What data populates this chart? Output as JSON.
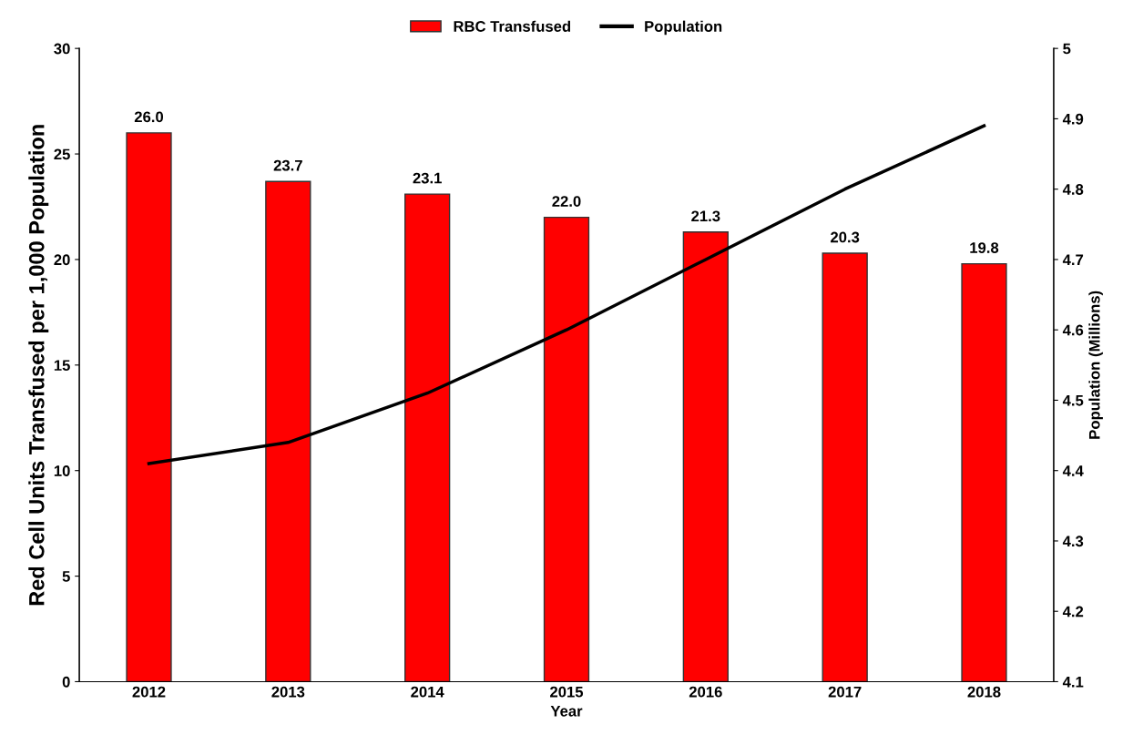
{
  "chart_data": {
    "type": "bar",
    "xlabel": "Year",
    "ylabel": "Red Cell Units Transfused per 1,000 Population",
    "y2label": "Population (Millions)",
    "categories": [
      "2012",
      "2013",
      "2014",
      "2015",
      "2016",
      "2017",
      "2018"
    ],
    "series": [
      {
        "name": "RBC Transfused",
        "color": "#ff0000",
        "values": [
          26.0,
          23.7,
          23.1,
          22.0,
          21.3,
          20.3,
          19.8
        ],
        "value_labels": [
          "26.0",
          "23.7",
          "23.1",
          "22.0",
          "21.3",
          "20.3",
          "19.8"
        ]
      },
      {
        "name": "Population",
        "type": "line",
        "axis": "y2",
        "color": "#000000",
        "values": [
          4.41,
          4.44,
          4.51,
          4.6,
          4.7,
          4.8,
          4.89
        ]
      }
    ],
    "ylim": [
      0,
      30
    ],
    "yticks": [
      0,
      5,
      10,
      15,
      20,
      25,
      30
    ],
    "y2lim": [
      4.1,
      5
    ],
    "y2ticks": [
      {
        "value": 4.1,
        "label": "4.1"
      },
      {
        "value": 4.2,
        "label": "4.2"
      },
      {
        "value": 4.3,
        "label": "4.3"
      },
      {
        "value": 4.4,
        "label": "4.4"
      },
      {
        "value": 4.5,
        "label": "4.5"
      },
      {
        "value": 4.6,
        "label": "4.6"
      },
      {
        "value": 4.7,
        "label": "4.7"
      },
      {
        "value": 4.8,
        "label": "4.8"
      },
      {
        "value": 4.9,
        "label": "4.9"
      },
      {
        "value": 5,
        "label": "5"
      }
    ],
    "legend": "top",
    "grid": false,
    "marker": "none",
    "line_style": "solid"
  }
}
